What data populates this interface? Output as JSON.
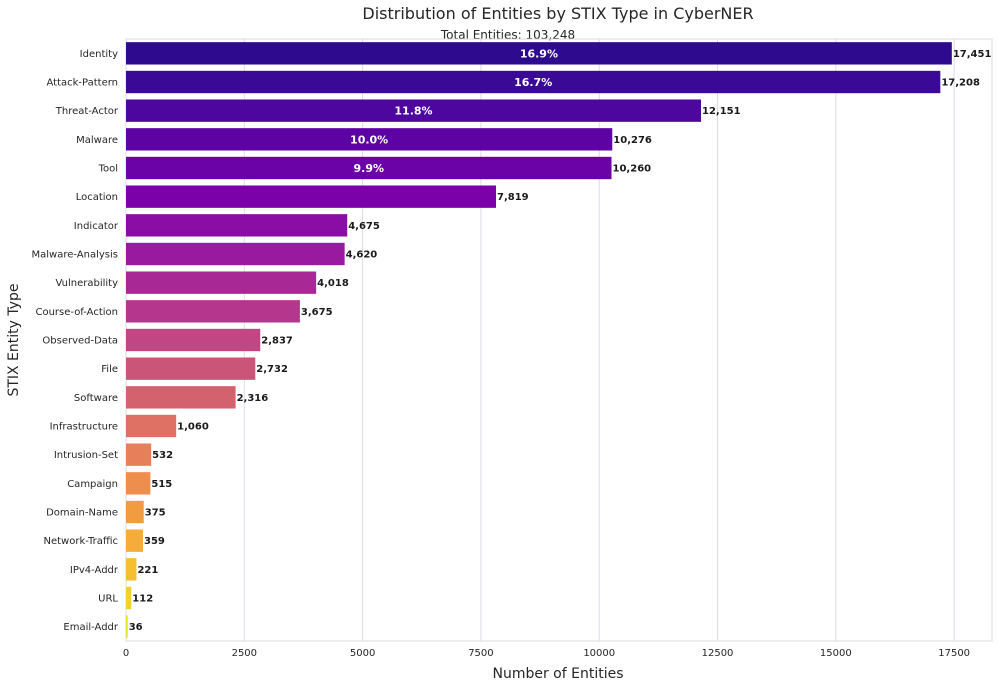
{
  "chart_data": {
    "type": "bar",
    "orientation": "horizontal",
    "title": "Distribution of Entities by STIX Type in CyberNER",
    "subtitle": "Total Entities: 103,248",
    "xlabel": "Number of Entities",
    "ylabel": "STIX Entity Type",
    "xlim": [
      0,
      18300
    ],
    "xticks": [
      0,
      2500,
      5000,
      7500,
      10000,
      12500,
      15000,
      17500
    ],
    "grid": "vertical",
    "categories": [
      "Identity",
      "Attack-Pattern",
      "Threat-Actor",
      "Malware",
      "Tool",
      "Location",
      "Indicator",
      "Malware-Analysis",
      "Vulnerability",
      "Course-of-Action",
      "Observed-Data",
      "File",
      "Software",
      "Infrastructure",
      "Intrusion-Set",
      "Campaign",
      "Domain-Name",
      "Network-Traffic",
      "IPv4-Addr",
      "URL",
      "Email-Addr"
    ],
    "values": [
      17451,
      17208,
      12151,
      10276,
      10260,
      7819,
      4675,
      4620,
      4018,
      3675,
      2837,
      2732,
      2316,
      1060,
      532,
      515,
      375,
      359,
      221,
      112,
      36
    ],
    "value_labels": [
      "17,451",
      "17,208",
      "12,151",
      "10,276",
      "10,260",
      "7,819",
      "4,675",
      "4,620",
      "4,018",
      "3,675",
      "2,837",
      "2,732",
      "2,316",
      "1,060",
      "532",
      "515",
      "375",
      "359",
      "221",
      "112",
      "36"
    ],
    "percent_labels": [
      "16.9%",
      "16.7%",
      "11.8%",
      "10.0%",
      "9.9%"
    ],
    "colors": [
      "#2e0b8e",
      "#3a0996",
      "#4d069e",
      "#5d03a4",
      "#6b02a7",
      "#7a02a8",
      "#8a0da5",
      "#9a1a9f",
      "#a82996",
      "#b5368d",
      "#c14684",
      "#cb5578",
      "#d4626e",
      "#de7164",
      "#e77f5a",
      "#ed8d4e",
      "#f29c42",
      "#f5ac38",
      "#f5bf30",
      "#f1d22c",
      "#e8e32a"
    ],
    "colormap": "plasma"
  }
}
